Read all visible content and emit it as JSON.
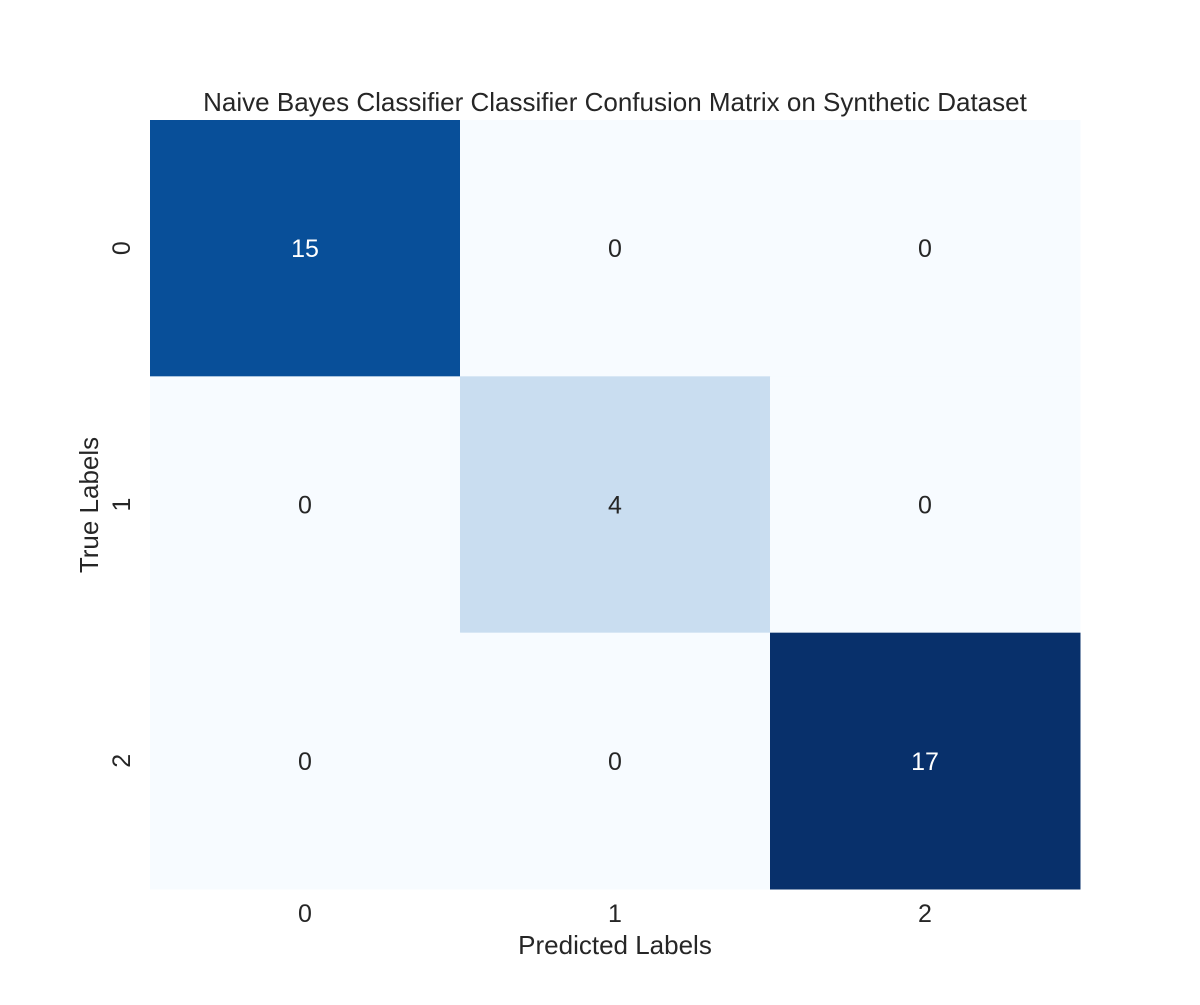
{
  "chart_data": {
    "type": "heatmap",
    "title": "Naive Bayes Classifier Classifier Confusion Matrix on Synthetic Dataset",
    "xlabel": "Predicted Labels",
    "ylabel": "True Labels",
    "x_categories": [
      "0",
      "1",
      "2"
    ],
    "y_categories": [
      "0",
      "1",
      "2"
    ],
    "values": [
      [
        15,
        0,
        0
      ],
      [
        0,
        4,
        0
      ],
      [
        0,
        0,
        17
      ]
    ],
    "colormap": "Blues",
    "value_range": [
      0,
      17
    ],
    "colorbar": false,
    "grid": false
  }
}
